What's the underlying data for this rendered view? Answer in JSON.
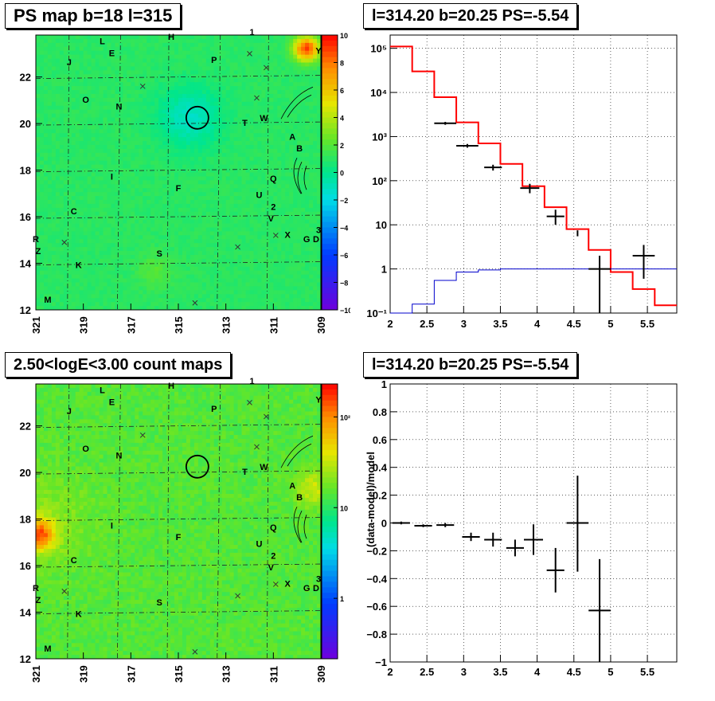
{
  "panels": {
    "top_left_title": "PS map b=18 l=315",
    "top_right_title": "l=314.20 b=20.25 PS=-5.54",
    "bottom_left_title": "2.50<logE<3.00 count maps",
    "bottom_right_title": "l=314.20 b=20.25 PS=-5.54"
  },
  "chart_data": [
    {
      "type": "heatmap",
      "title": "PS map b=18 l=315",
      "x_ticks": [
        "321",
        "319",
        "317",
        "315",
        "313",
        "311",
        "309"
      ],
      "y_ticks": [
        "12",
        "14",
        "16",
        "18",
        "20",
        "22"
      ],
      "xlim": [
        321,
        309
      ],
      "ylim": [
        12,
        23.8
      ],
      "colorbar_ticks": [
        "10",
        "8",
        "6",
        "4",
        "2",
        "0",
        "−2",
        "−4",
        "−6",
        "−8",
        "−10"
      ],
      "colorbar_range": [
        -10,
        10
      ],
      "circle": {
        "l": 314.2,
        "b": 20.25
      },
      "source_labels": [
        {
          "t": "L",
          "l": 318.2,
          "b": 23.4
        },
        {
          "t": "E",
          "l": 317.8,
          "b": 22.9
        },
        {
          "t": "H",
          "l": 315.3,
          "b": 23.6
        },
        {
          "t": "1",
          "l": 311.9,
          "b": 23.8
        },
        {
          "t": "J",
          "l": 319.6,
          "b": 22.5
        },
        {
          "t": "P",
          "l": 313.5,
          "b": 22.6
        },
        {
          "t": "Y",
          "l": 309.1,
          "b": 23.0
        },
        {
          "t": "O",
          "l": 318.9,
          "b": 20.9
        },
        {
          "t": "N",
          "l": 317.5,
          "b": 20.6
        },
        {
          "t": "T",
          "l": 312.2,
          "b": 19.9
        },
        {
          "t": "W",
          "l": 311.4,
          "b": 20.1
        },
        {
          "t": "A",
          "l": 310.2,
          "b": 19.3
        },
        {
          "t": "B",
          "l": 309.9,
          "b": 18.8
        },
        {
          "t": "I",
          "l": 317.8,
          "b": 17.6
        },
        {
          "t": "F",
          "l": 315.0,
          "b": 17.1
        },
        {
          "t": "Q",
          "l": 311.0,
          "b": 17.5
        },
        {
          "t": "U",
          "l": 311.6,
          "b": 16.8
        },
        {
          "t": "2",
          "l": 311.0,
          "b": 16.3
        },
        {
          "t": "V",
          "l": 311.1,
          "b": 15.8
        },
        {
          "t": "C",
          "l": 319.4,
          "b": 16.1
        },
        {
          "t": "X",
          "l": 310.4,
          "b": 15.1
        },
        {
          "t": "G",
          "l": 309.6,
          "b": 14.9
        },
        {
          "t": "D",
          "l": 309.2,
          "b": 14.9
        },
        {
          "t": "3",
          "l": 309.1,
          "b": 15.3
        },
        {
          "t": "R",
          "l": 321.0,
          "b": 14.9
        },
        {
          "t": "Z",
          "l": 320.9,
          "b": 14.4
        },
        {
          "t": "K",
          "l": 319.2,
          "b": 13.8
        },
        {
          "t": "S",
          "l": 315.8,
          "b": 14.3
        },
        {
          "t": "M",
          "l": 320.5,
          "b": 12.3
        }
      ],
      "x_marks": [
        {
          "l": 316.5,
          "b": 21.6
        },
        {
          "l": 312.0,
          "b": 23.0
        },
        {
          "l": 311.3,
          "b": 22.4
        },
        {
          "l": 311.7,
          "b": 21.1
        },
        {
          "l": 319.8,
          "b": 14.9
        },
        {
          "l": 312.5,
          "b": 14.7
        },
        {
          "l": 310.9,
          "b": 15.2
        },
        {
          "l": 314.3,
          "b": 12.3
        }
      ]
    },
    {
      "type": "line",
      "title": "l=314.20 b=20.25 PS=-5.54",
      "xlabel": "",
      "ylabel": "",
      "x_ticks": [
        "2",
        "2.5",
        "3",
        "3.5",
        "4",
        "4.5",
        "5",
        "5.5"
      ],
      "y_ticks": [
        "10⁻¹",
        "1",
        "10",
        "10²",
        "10³",
        "10⁴",
        "10⁵"
      ],
      "xlim": [
        2,
        5.9
      ],
      "ylim": [
        0.1,
        200000
      ],
      "yscale": "log",
      "series": [
        {
          "color": "#ff0000",
          "edges": [
            2.0,
            2.3,
            2.6,
            2.9,
            3.2,
            3.5,
            3.8,
            4.1,
            4.4,
            4.7,
            5.0,
            5.3,
            5.6,
            5.9
          ],
          "values": [
            110000,
            30000,
            7800,
            2100,
            700,
            240,
            75,
            25,
            8,
            2.7,
            0.85,
            0.35,
            0.15
          ]
        },
        {
          "color": "#0000cc",
          "edges": [
            2.0,
            2.3,
            2.6,
            2.9,
            3.2,
            3.5,
            3.8,
            4.1,
            4.4,
            4.7,
            5.0,
            5.3,
            5.6,
            5.9
          ],
          "values": [
            0.1,
            0.16,
            0.55,
            0.85,
            0.95,
            1,
            1,
            1,
            1,
            1,
            1,
            1,
            1
          ]
        },
        {
          "color": "#000000",
          "points": [
            {
              "x": 2.75,
              "y": 2000,
              "xerr": 0.15,
              "ylo": 1850,
              "yhi": 2150
            },
            {
              "x": 3.05,
              "y": 620,
              "xerr": 0.15,
              "ylo": 560,
              "yhi": 680
            },
            {
              "x": 3.4,
              "y": 200,
              "xerr": 0.12,
              "ylo": 170,
              "yhi": 230
            },
            {
              "x": 3.9,
              "y": 68,
              "xerr": 0.13,
              "ylo": 52,
              "yhi": 85
            },
            {
              "x": 4.25,
              "y": 15.5,
              "xerr": 0.12,
              "ylo": 10,
              "yhi": 22
            },
            {
              "x": 4.55,
              "y": 6.5,
              "xerr": 0.0,
              "ylo": 5.5,
              "yhi": 7.5
            },
            {
              "x": 4.85,
              "y": 1,
              "xerr": 0.15,
              "ylo": 0.1,
              "yhi": 2.0
            },
            {
              "x": 5.45,
              "y": 2,
              "xerr": 0.15,
              "ylo": 0.6,
              "yhi": 3.5
            }
          ]
        }
      ]
    },
    {
      "type": "heatmap",
      "title": "2.50<logE<3.00 count maps",
      "x_ticks": [
        "321",
        "319",
        "317",
        "315",
        "313",
        "311",
        "309"
      ],
      "y_ticks": [
        "12",
        "14",
        "16",
        "18",
        "20",
        "22"
      ],
      "xlim": [
        321,
        309
      ],
      "ylim": [
        12,
        23.8
      ],
      "colorbar_ticks": [
        "10²",
        "10",
        "1"
      ],
      "colorbar_scale": "log"
    },
    {
      "type": "scatter",
      "title": "l=314.20 b=20.25 PS=-5.54",
      "xlabel": "",
      "ylabel": "(data-model)/model",
      "x_ticks": [
        "2",
        "2.5",
        "3",
        "3.5",
        "4",
        "4.5",
        "5",
        "5.5"
      ],
      "y_ticks": [
        "−1",
        "−0.8",
        "−0.6",
        "−0.4",
        "−0.2",
        "0",
        "0.2",
        "0.4",
        "0.6",
        "0.8",
        "1"
      ],
      "xlim": [
        2,
        5.9
      ],
      "ylim": [
        -1,
        1
      ],
      "points": [
        {
          "x": 2.15,
          "y": 0.0,
          "xerr": 0.12,
          "ylo": -0.01,
          "yhi": 0.01
        },
        {
          "x": 2.45,
          "y": -0.02,
          "xerr": 0.12,
          "ylo": -0.03,
          "yhi": -0.01
        },
        {
          "x": 2.75,
          "y": -0.015,
          "xerr": 0.12,
          "ylo": -0.03,
          "yhi": 0.0
        },
        {
          "x": 3.1,
          "y": -0.1,
          "xerr": 0.12,
          "ylo": -0.13,
          "yhi": -0.07
        },
        {
          "x": 3.4,
          "y": -0.12,
          "xerr": 0.12,
          "ylo": -0.17,
          "yhi": -0.07
        },
        {
          "x": 3.7,
          "y": -0.18,
          "xerr": 0.12,
          "ylo": -0.24,
          "yhi": -0.12
        },
        {
          "x": 3.95,
          "y": -0.12,
          "xerr": 0.13,
          "ylo": -0.23,
          "yhi": -0.01
        },
        {
          "x": 4.25,
          "y": -0.34,
          "xerr": 0.12,
          "ylo": -0.5,
          "yhi": -0.18
        },
        {
          "x": 4.55,
          "y": 0.0,
          "xerr": 0.15,
          "ylo": -0.35,
          "yhi": 0.34
        },
        {
          "x": 4.85,
          "y": -0.63,
          "xerr": 0.15,
          "ylo": -1.0,
          "yhi": -0.26
        }
      ]
    }
  ]
}
